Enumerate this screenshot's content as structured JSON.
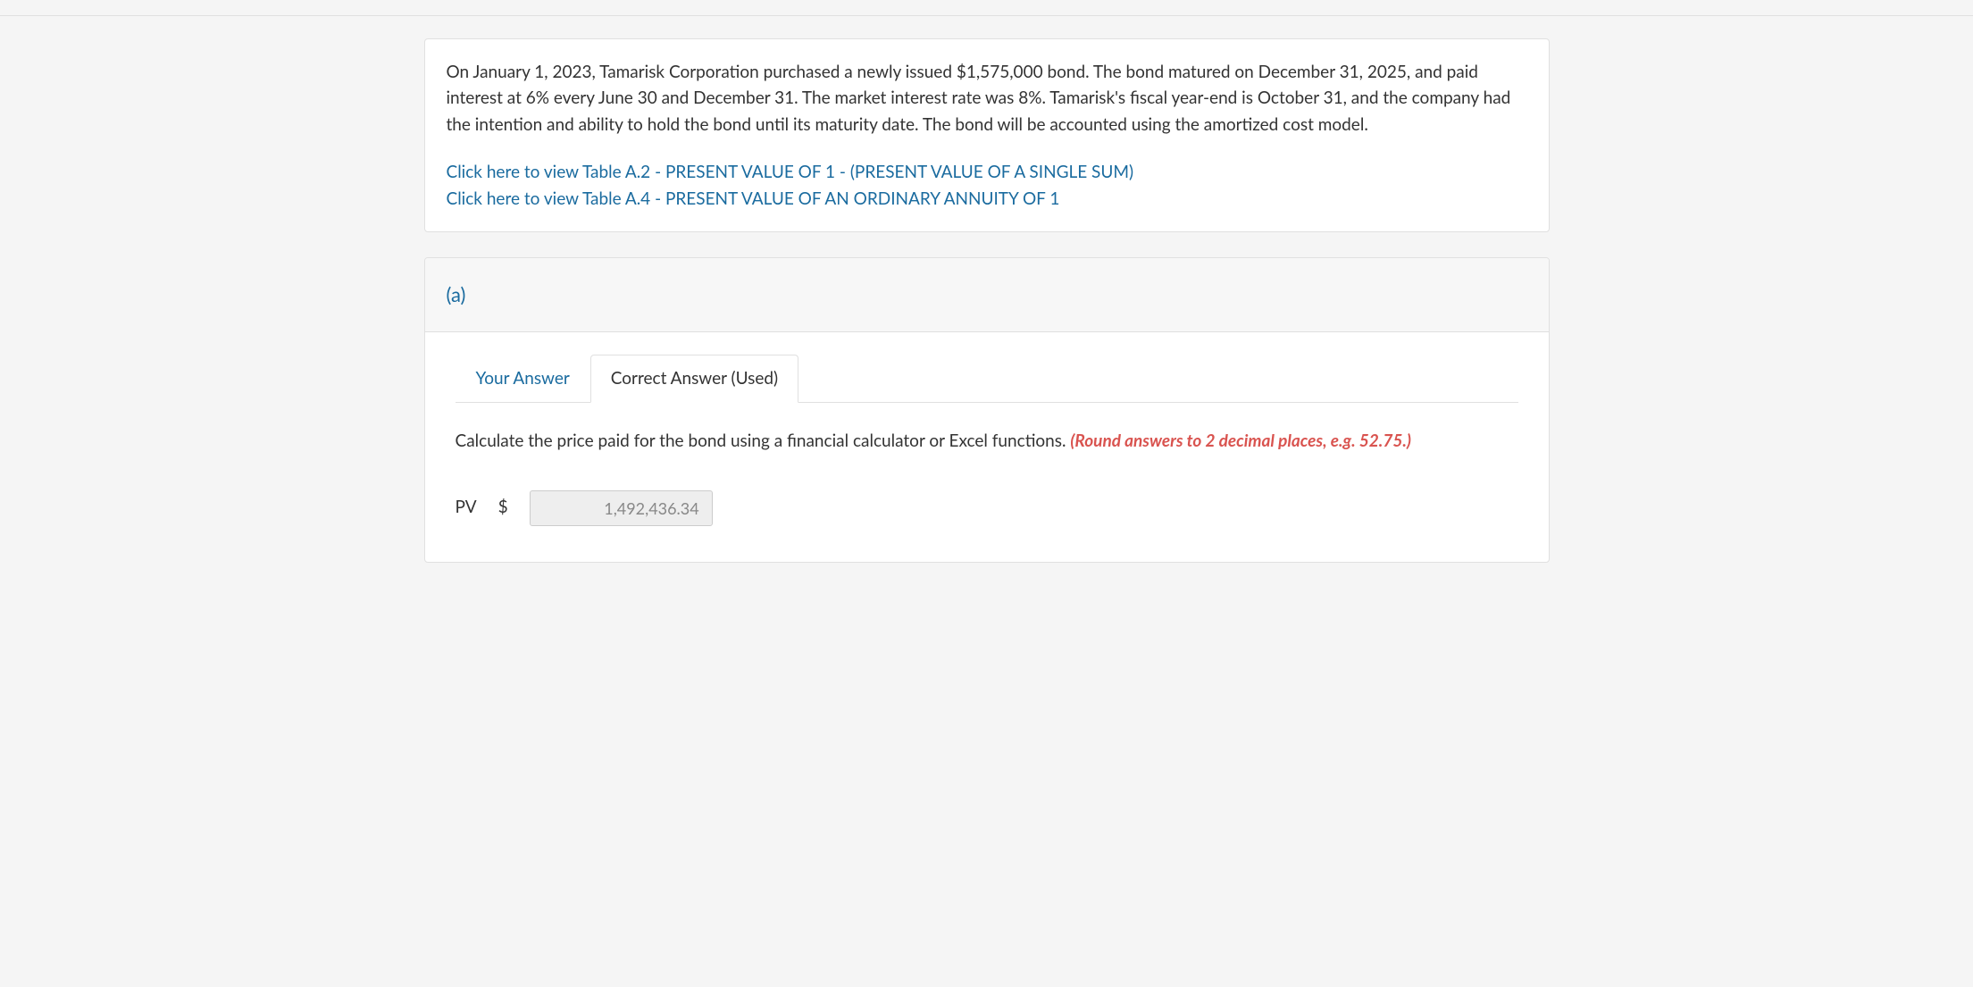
{
  "question": {
    "text": "On January 1, 2023, Tamarisk Corporation purchased a newly issued $1,575,000 bond. The bond matured on December 31, 2025, and paid interest at 6% every June 30 and December 31. The market interest rate was 8%. Tamarisk's fiscal year-end is October 31, and the company had the intention and ability to hold the bond until its maturity date. The bond will be accounted using the amortized cost model.",
    "link1": "Click here to view Table A.2 - PRESENT VALUE OF 1 - (PRESENT VALUE OF A SINGLE SUM)",
    "link2": "Click here to view Table A.4 - PRESENT VALUE OF AN ORDINARY ANNUITY OF 1"
  },
  "part": {
    "label": "(a)",
    "tabs": {
      "your_answer": "Your Answer",
      "correct_answer": "Correct Answer (Used)"
    },
    "instruction_main": "Calculate the price paid for the bond using a financial calculator or Excel functions. ",
    "instruction_hint": "(Round answers to 2 decimal places, e.g. 52.75.)",
    "answer": {
      "label": "PV",
      "currency": "$",
      "value": "1,492,436.34"
    }
  }
}
